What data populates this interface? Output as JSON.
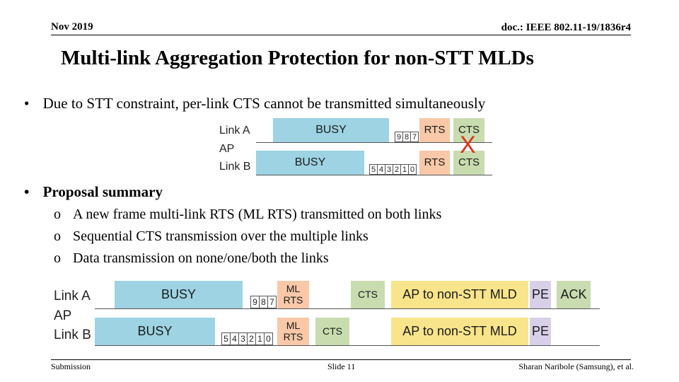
{
  "header": {
    "date": "Nov 2019",
    "doc": "doc.: IEEE 802.11-19/1836r4"
  },
  "title": "Multi-link Aggregation Protection for non-STT MLDs",
  "bullets": {
    "b1": "Due to STT constraint, per-link CTS cannot be transmitted simultaneously",
    "b2": "Proposal summary",
    "subs": [
      "A new frame multi-link RTS (ML RTS) transmitted on both links",
      "Sequential CTS transmission over the multiple links",
      "Data transmission on none/one/both the links"
    ],
    "bullet_char": "•",
    "sub_char": "o"
  },
  "diagram1": {
    "labels": {
      "linkA": "Link A",
      "ap": "AP",
      "linkB": "Link B"
    },
    "busyA": "BUSY",
    "busyB": "BUSY",
    "backoffA": [
      "9",
      "8",
      "7"
    ],
    "backoffB": [
      "5",
      "4",
      "3",
      "2",
      "1",
      "0"
    ],
    "rtsA": "RTS",
    "rtsB": "RTS",
    "ctsA": "CTS",
    "ctsB": "CTS",
    "cross": "X",
    "cross_color": "#e0301e"
  },
  "diagram2": {
    "labels": {
      "linkA": "Link A",
      "ap": "AP",
      "linkB": "Link B"
    },
    "busyA": "BUSY",
    "busyB": "BUSY",
    "backoffA": [
      "9",
      "8",
      "7"
    ],
    "backoffB": [
      "5",
      "4",
      "3",
      "2",
      "1",
      "0"
    ],
    "mlrtsA": "ML RTS",
    "mlrtsB": "ML RTS",
    "ctsA": "CTS",
    "ctsB": "CTS",
    "dataA": "AP to non-STT MLD",
    "dataB": "AP to non-STT MLD",
    "peA": "PE",
    "peB": "PE",
    "ack": "ACK"
  },
  "footer": {
    "left": "Submission",
    "center": "Slide 11",
    "right": "Sharan Naribole (Samsung), et al."
  },
  "colors": {
    "busy": "#9dd3e3",
    "rts": "#f8c8a8",
    "cts": "#c8dcb0",
    "data": "#f8e48a",
    "pe": "#d8d0e8"
  }
}
